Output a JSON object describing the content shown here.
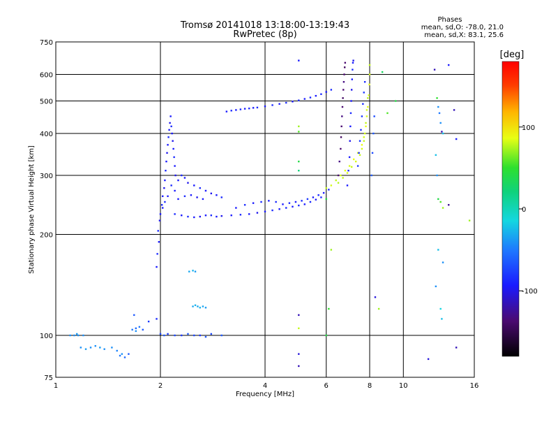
{
  "chart_data": {
    "type": "scatter",
    "title": "Tromsø 20141018 13:18:00-13:19:43",
    "subtitle": "RwPretec (8p)",
    "xlabel": "Frequency [MHz]",
    "ylabel": "Stationary phase Virtual Height [km]",
    "x_scale": "log",
    "y_scale": "log",
    "xlim": [
      1,
      16
    ],
    "ylim": [
      75,
      750
    ],
    "x_ticks": [
      1,
      2,
      4,
      6,
      8,
      10,
      16
    ],
    "x_tick_labels": [
      "1",
      "2",
      "4",
      "6",
      "8",
      "10",
      "16"
    ],
    "y_ticks": [
      75,
      100,
      200,
      300,
      400,
      500,
      600,
      750
    ],
    "y_tick_labels": [
      "75",
      "100",
      "200",
      "300",
      "400",
      "500",
      "600",
      "750"
    ],
    "grid_x": [
      2,
      4,
      6,
      8,
      10
    ],
    "grid_y": [
      100,
      200,
      300,
      400,
      500,
      600
    ],
    "grid": true,
    "stats": {
      "heading": "Phases",
      "line_o": "mean, sd,O: -78.0, 21.0",
      "line_x": "mean, sd,X:  83.1, 25.6"
    },
    "colorbar": {
      "label": "[deg]",
      "range": [
        -180,
        180
      ],
      "ticks": [
        100,
        0,
        -100
      ],
      "tick_labels": [
        "100",
        "0",
        "-100"
      ]
    },
    "points": [
      [
        1.1,
        100,
        -60
      ],
      [
        1.13,
        100,
        -60
      ],
      [
        1.16,
        100,
        -60
      ],
      [
        1.2,
        100,
        -60
      ],
      [
        1.15,
        101,
        -55
      ],
      [
        1.18,
        92,
        -60
      ],
      [
        1.22,
        91,
        -55
      ],
      [
        1.26,
        92,
        -60
      ],
      [
        1.3,
        93,
        -60
      ],
      [
        1.34,
        92,
        -55
      ],
      [
        1.38,
        91,
        -60
      ],
      [
        1.45,
        92,
        -60
      ],
      [
        1.5,
        90,
        -65
      ],
      [
        1.53,
        87,
        -70
      ],
      [
        1.55,
        88,
        -60
      ],
      [
        1.58,
        86,
        -75
      ],
      [
        1.62,
        88,
        -80
      ],
      [
        1.66,
        104,
        -70
      ],
      [
        1.7,
        105,
        -75
      ],
      [
        1.74,
        106,
        -70
      ],
      [
        1.78,
        104,
        -80
      ],
      [
        1.7,
        103,
        -60
      ],
      [
        1.85,
        110,
        -90
      ],
      [
        1.95,
        112,
        -95
      ],
      [
        1.68,
        115,
        -80
      ],
      [
        2.0,
        101,
        -85
      ],
      [
        2.05,
        100,
        -80
      ],
      [
        2.1,
        101,
        -90
      ],
      [
        2.2,
        100,
        -85
      ],
      [
        2.3,
        100,
        -90
      ],
      [
        2.4,
        101,
        -80
      ],
      [
        2.5,
        100,
        -85
      ],
      [
        2.6,
        100,
        -90
      ],
      [
        2.7,
        99,
        -80
      ],
      [
        2.8,
        101,
        -85
      ],
      [
        3.0,
        100,
        -80
      ],
      [
        2.48,
        122,
        -50
      ],
      [
        2.52,
        123,
        -45
      ],
      [
        2.56,
        122,
        -50
      ],
      [
        2.6,
        121,
        -45
      ],
      [
        2.65,
        122,
        -50
      ],
      [
        2.7,
        121,
        -55
      ],
      [
        2.42,
        155,
        -50
      ],
      [
        2.48,
        156,
        -45
      ],
      [
        2.52,
        155,
        -55
      ],
      [
        1.95,
        160,
        -100
      ],
      [
        1.96,
        175,
        -95
      ],
      [
        1.98,
        190,
        -100
      ],
      [
        1.97,
        205,
        -95
      ],
      [
        1.99,
        220,
        -105
      ],
      [
        2.0,
        230,
        -100
      ],
      [
        2.02,
        245,
        -95
      ],
      [
        2.03,
        260,
        -100
      ],
      [
        2.05,
        275,
        -105
      ],
      [
        2.06,
        290,
        -100
      ],
      [
        2.07,
        310,
        -95
      ],
      [
        2.08,
        330,
        -100
      ],
      [
        2.09,
        350,
        -105
      ],
      [
        2.1,
        370,
        -100
      ],
      [
        2.11,
        390,
        -95
      ],
      [
        2.12,
        410,
        -100
      ],
      [
        2.13,
        430,
        -105
      ],
      [
        2.14,
        450,
        -100
      ],
      [
        2.15,
        420,
        -95
      ],
      [
        2.16,
        400,
        -100
      ],
      [
        2.17,
        380,
        -105
      ],
      [
        2.18,
        360,
        -100
      ],
      [
        2.19,
        340,
        -95
      ],
      [
        2.2,
        320,
        -100
      ],
      [
        2.21,
        300,
        -105
      ],
      [
        2.03,
        240,
        -100
      ],
      [
        2.06,
        250,
        -95
      ],
      [
        2.1,
        260,
        -100
      ],
      [
        2.15,
        280,
        -95
      ],
      [
        2.2,
        270,
        -100
      ],
      [
        2.25,
        290,
        -100
      ],
      [
        2.3,
        300,
        -95
      ],
      [
        2.35,
        295,
        -100
      ],
      [
        2.4,
        285,
        -105
      ],
      [
        2.5,
        280,
        -100
      ],
      [
        2.6,
        275,
        -95
      ],
      [
        2.7,
        270,
        -100
      ],
      [
        2.8,
        265,
        -105
      ],
      [
        2.9,
        262,
        -100
      ],
      [
        3.0,
        258,
        -95
      ],
      [
        2.25,
        255,
        -100
      ],
      [
        2.35,
        260,
        -95
      ],
      [
        2.45,
        262,
        -100
      ],
      [
        2.55,
        258,
        -105
      ],
      [
        2.65,
        255,
        -100
      ],
      [
        2.2,
        230,
        -95
      ],
      [
        2.3,
        228,
        -100
      ],
      [
        2.4,
        226,
        -95
      ],
      [
        2.5,
        225,
        -100
      ],
      [
        2.6,
        226,
        -105
      ],
      [
        2.7,
        228,
        -100
      ],
      [
        2.8,
        228,
        -95
      ],
      [
        2.9,
        226,
        -100
      ],
      [
        3.0,
        227,
        -105
      ],
      [
        3.2,
        228,
        -100
      ],
      [
        3.4,
        229,
        -95
      ],
      [
        3.6,
        230,
        -100
      ],
      [
        3.8,
        232,
        -105
      ],
      [
        4.0,
        234,
        -100
      ],
      [
        4.2,
        236,
        -95
      ],
      [
        3.3,
        240,
        -100
      ],
      [
        3.5,
        245,
        -95
      ],
      [
        3.7,
        248,
        -100
      ],
      [
        3.9,
        250,
        -95
      ],
      [
        4.1,
        252,
        -100
      ],
      [
        4.3,
        250,
        -95
      ],
      [
        4.5,
        246,
        -100
      ],
      [
        4.7,
        248,
        -95
      ],
      [
        4.9,
        250,
        -100
      ],
      [
        5.1,
        252,
        -95
      ],
      [
        5.3,
        255,
        -90
      ],
      [
        5.5,
        258,
        -100
      ],
      [
        5.7,
        262,
        -95
      ],
      [
        5.9,
        266,
        -100
      ],
      [
        6.1,
        272,
        -95
      ],
      [
        4.4,
        238,
        -100
      ],
      [
        4.6,
        240,
        -95
      ],
      [
        4.8,
        242,
        -100
      ],
      [
        5.0,
        244,
        -95
      ],
      [
        5.2,
        246,
        -100
      ],
      [
        5.4,
        250,
        -95
      ],
      [
        5.6,
        254,
        -100
      ],
      [
        5.8,
        258,
        -95
      ],
      [
        3.1,
        465,
        -100
      ],
      [
        3.2,
        468,
        -95
      ],
      [
        3.3,
        470,
        -100
      ],
      [
        3.4,
        472,
        -95
      ],
      [
        3.5,
        474,
        -100
      ],
      [
        3.6,
        475,
        -95
      ],
      [
        3.7,
        477,
        -100
      ],
      [
        3.8,
        478,
        -95
      ],
      [
        4.0,
        482,
        -100
      ],
      [
        4.2,
        486,
        -95
      ],
      [
        4.4,
        490,
        -100
      ],
      [
        4.6,
        494,
        -95
      ],
      [
        4.8,
        498,
        -100
      ],
      [
        5.0,
        502,
        -95
      ],
      [
        5.2,
        507,
        -100
      ],
      [
        5.4,
        512,
        -95
      ],
      [
        5.6,
        518,
        -100
      ],
      [
        5.8,
        524,
        -95
      ],
      [
        6.0,
        532,
        -100
      ],
      [
        6.2,
        540,
        -95
      ],
      [
        6.0,
        275,
        70
      ],
      [
        6.2,
        280,
        75
      ],
      [
        6.4,
        290,
        70
      ],
      [
        6.6,
        300,
        75
      ],
      [
        6.8,
        310,
        80
      ],
      [
        7.0,
        320,
        75
      ],
      [
        7.2,
        335,
        80
      ],
      [
        7.4,
        350,
        75
      ],
      [
        7.6,
        370,
        80
      ],
      [
        7.7,
        390,
        75
      ],
      [
        7.8,
        420,
        80
      ],
      [
        7.85,
        450,
        75
      ],
      [
        7.9,
        480,
        80
      ],
      [
        7.95,
        520,
        75
      ],
      [
        7.98,
        560,
        80
      ],
      [
        8.0,
        600,
        75
      ],
      [
        8.0,
        640,
        70
      ],
      [
        6.5,
        285,
        65
      ],
      [
        6.7,
        295,
        70
      ],
      [
        6.9,
        305,
        75
      ],
      [
        7.1,
        318,
        70
      ],
      [
        7.3,
        330,
        75
      ],
      [
        7.5,
        345,
        70
      ],
      [
        7.6,
        360,
        75
      ],
      [
        7.7,
        380,
        70
      ],
      [
        7.75,
        400,
        75
      ],
      [
        7.8,
        430,
        70
      ],
      [
        7.85,
        470,
        75
      ],
      [
        7.9,
        510,
        70
      ],
      [
        6.5,
        300,
        -140
      ],
      [
        6.55,
        330,
        -135
      ],
      [
        6.6,
        360,
        -140
      ],
      [
        6.62,
        390,
        -145
      ],
      [
        6.64,
        420,
        -140
      ],
      [
        6.66,
        450,
        -135
      ],
      [
        6.68,
        480,
        -140
      ],
      [
        6.7,
        510,
        -145
      ],
      [
        6.72,
        540,
        -140
      ],
      [
        6.74,
        570,
        -135
      ],
      [
        6.76,
        600,
        -140
      ],
      [
        6.78,
        630,
        -145
      ],
      [
        6.8,
        650,
        -140
      ],
      [
        6.9,
        280,
        -100
      ],
      [
        6.95,
        310,
        -95
      ],
      [
        7.0,
        340,
        -100
      ],
      [
        7.02,
        380,
        -105
      ],
      [
        7.04,
        420,
        -100
      ],
      [
        7.06,
        460,
        -95
      ],
      [
        7.08,
        500,
        -100
      ],
      [
        7.1,
        540,
        -105
      ],
      [
        7.12,
        580,
        -100
      ],
      [
        7.14,
        620,
        -95
      ],
      [
        7.16,
        650,
        -100
      ],
      [
        7.18,
        660,
        -105
      ],
      [
        7.4,
        320,
        -90
      ],
      [
        7.45,
        350,
        -95
      ],
      [
        7.5,
        380,
        -90
      ],
      [
        7.55,
        410,
        -95
      ],
      [
        7.6,
        450,
        -90
      ],
      [
        7.65,
        490,
        -95
      ],
      [
        7.7,
        530,
        -90
      ],
      [
        7.75,
        570,
        -95
      ],
      [
        8.1,
        300,
        -80
      ],
      [
        8.15,
        350,
        -85
      ],
      [
        8.2,
        400,
        -80
      ],
      [
        8.25,
        450,
        -85
      ],
      [
        5.0,
        660,
        -100
      ],
      [
        5.0,
        420,
        60
      ],
      [
        5.0,
        405,
        40
      ],
      [
        5.0,
        330,
        20
      ],
      [
        5.0,
        310,
        0
      ],
      [
        5.0,
        115,
        -120
      ],
      [
        5.0,
        105,
        70
      ],
      [
        5.0,
        88,
        -110
      ],
      [
        5.0,
        81,
        -120
      ],
      [
        6.0,
        255,
        20
      ],
      [
        6.2,
        180,
        60
      ],
      [
        6.1,
        120,
        30
      ],
      [
        6.0,
        100,
        20
      ],
      [
        8.5,
        120,
        60
      ],
      [
        9.0,
        460,
        40
      ],
      [
        9.5,
        500,
        20
      ],
      [
        8.7,
        610,
        10
      ],
      [
        11.8,
        85,
        -110
      ],
      [
        12.3,
        620,
        -120
      ],
      [
        12.5,
        510,
        30
      ],
      [
        12.6,
        480,
        -60
      ],
      [
        12.7,
        460,
        -70
      ],
      [
        12.8,
        430,
        -60
      ],
      [
        12.9,
        405,
        -120
      ],
      [
        13.0,
        400,
        -40
      ],
      [
        12.4,
        345,
        -40
      ],
      [
        12.5,
        300,
        -60
      ],
      [
        12.6,
        255,
        20
      ],
      [
        12.8,
        250,
        40
      ],
      [
        13.0,
        240,
        60
      ],
      [
        12.4,
        140,
        -60
      ],
      [
        12.6,
        180,
        -40
      ],
      [
        12.8,
        120,
        -30
      ],
      [
        12.9,
        112,
        -40
      ],
      [
        13.0,
        165,
        -60
      ],
      [
        13.5,
        245,
        -130
      ],
      [
        14.0,
        470,
        -120
      ],
      [
        14.2,
        385,
        -100
      ],
      [
        14.2,
        92,
        -120
      ],
      [
        15.5,
        220,
        60
      ],
      [
        13.5,
        640,
        -100
      ],
      [
        8.3,
        130,
        -110
      ]
    ]
  }
}
